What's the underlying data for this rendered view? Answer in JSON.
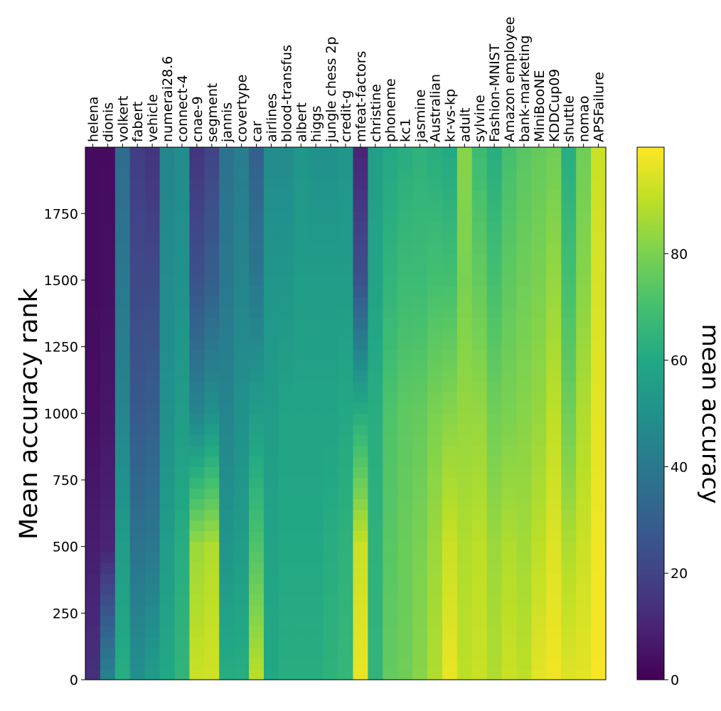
{
  "chart_data": {
    "type": "heatmap",
    "title": "",
    "ylabel": "Mean accuracy rank",
    "colorbar_label": "mean accuracy",
    "colormap": "viridis",
    "columns": [
      "helena",
      "dionis",
      "volkert",
      "fabert",
      "vehicle",
      "numerai28.6",
      "connect-4",
      "cnae-9",
      "segment",
      "jannis",
      "covertype",
      "car",
      "airlines",
      "blood-transfus",
      "albert",
      "higgs",
      "jungle chess 2p",
      "credit-g",
      "mfeat-factors",
      "christine",
      "phoneme",
      "kc1",
      "jasmine",
      "Australian",
      "kr-vs-kp",
      "adult",
      "sylvine",
      "Fashion-MNIST",
      "Amazon employee",
      "bank-marketing",
      "MiniBooNE",
      "KDDCup09",
      "shuttle",
      "nomao",
      "APSFailure"
    ],
    "y_range": [
      0,
      1999
    ],
    "y_ticks": [
      0,
      250,
      500,
      750,
      1000,
      1250,
      1500,
      1750
    ],
    "y_tick_labels": [
      "0",
      "250",
      "500",
      "750",
      "1000",
      "1250",
      "1500",
      "1750"
    ],
    "color_range": [
      0,
      100
    ],
    "colorbar_ticks": [
      0,
      20,
      40,
      60,
      80
    ],
    "colorbar_tick_labels": [
      "0",
      "20",
      "40",
      "60",
      "80"
    ],
    "column_profiles": {
      "rank_points": [
        0,
        500,
        1000,
        1500,
        1999
      ],
      "mean_accuracy": [
        [
          14,
          8,
          4,
          3,
          3
        ],
        [
          45,
          10,
          6,
          4,
          3
        ],
        [
          62,
          55,
          45,
          40,
          35
        ],
        [
          50,
          38,
          28,
          22,
          18
        ],
        [
          55,
          40,
          30,
          22,
          15
        ],
        [
          60,
          55,
          50,
          48,
          45
        ],
        [
          65,
          62,
          55,
          50,
          48
        ],
        [
          92,
          85,
          45,
          25,
          15
        ],
        [
          93,
          88,
          50,
          30,
          20
        ],
        [
          62,
          52,
          45,
          40,
          38
        ],
        [
          62,
          55,
          50,
          45,
          42
        ],
        [
          90,
          72,
          55,
          40,
          30
        ],
        [
          60,
          58,
          55,
          52,
          48
        ],
        [
          62,
          60,
          58,
          52,
          48
        ],
        [
          62,
          60,
          58,
          55,
          52
        ],
        [
          62,
          60,
          58,
          55,
          50
        ],
        [
          64,
          62,
          58,
          55,
          50
        ],
        [
          66,
          64,
          60,
          55,
          52
        ],
        [
          97,
          92,
          62,
          25,
          10
        ],
        [
          65,
          64,
          62,
          58,
          56
        ],
        [
          76,
          74,
          72,
          65,
          60
        ],
        [
          78,
          77,
          75,
          68,
          62
        ],
        [
          82,
          80,
          76,
          68,
          64
        ],
        [
          88,
          85,
          80,
          70,
          62
        ],
        [
          97,
          92,
          82,
          70,
          60
        ],
        [
          90,
          88,
          84,
          80,
          82
        ],
        [
          92,
          90,
          84,
          76,
          68
        ],
        [
          88,
          85,
          78,
          70,
          62
        ],
        [
          92,
          88,
          80,
          75,
          70
        ],
        [
          90,
          86,
          82,
          78,
          74
        ],
        [
          96,
          90,
          84,
          80,
          76
        ],
        [
          98,
          95,
          90,
          84,
          78
        ],
        [
          95,
          88,
          78,
          70,
          62
        ],
        [
          96,
          92,
          88,
          82,
          78
        ],
        [
          99,
          98,
          96,
          94,
          92
        ]
      ]
    }
  }
}
